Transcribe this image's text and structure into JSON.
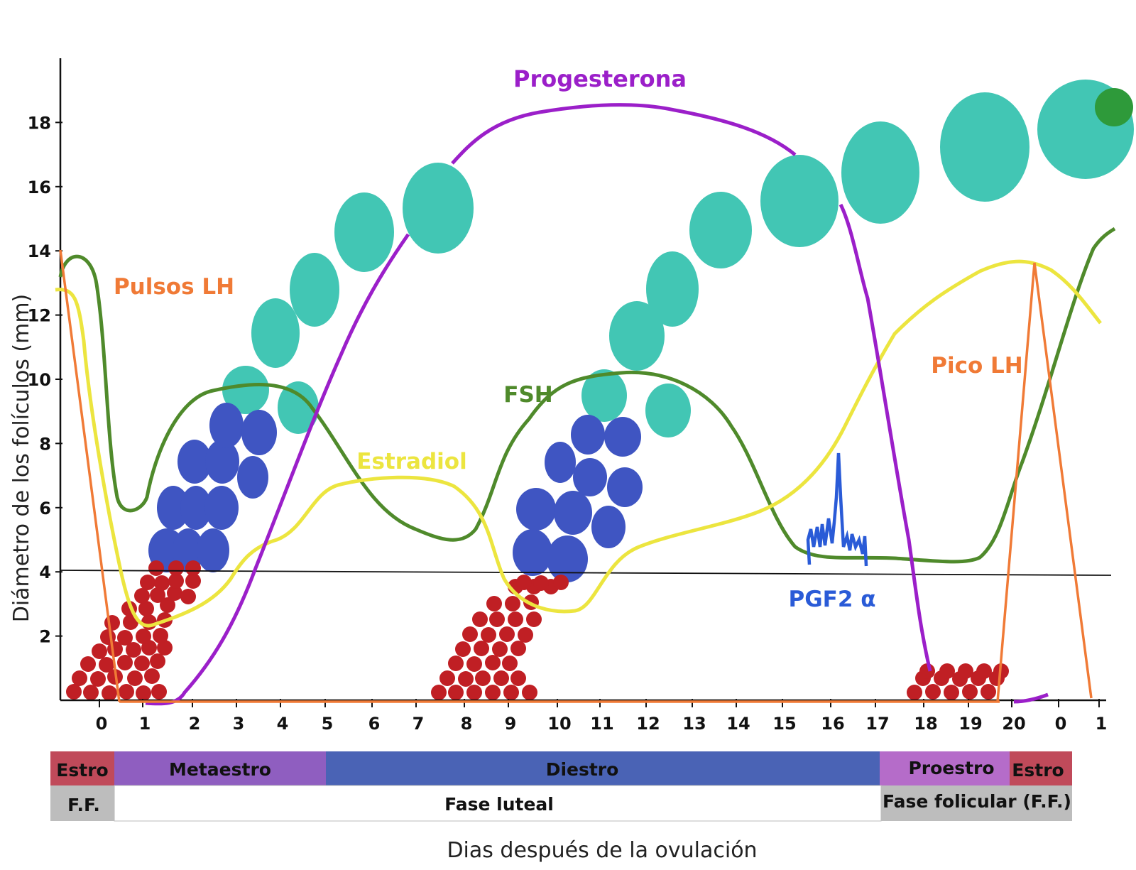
{
  "chart_data": {
    "type": "line",
    "ylabel": "Diámetro de los folículos (mm)",
    "xlabel": "Dias después de la ovulación",
    "y_ticks": [
      "2",
      "4",
      "6",
      "8",
      "10",
      "12",
      "14",
      "16",
      "18"
    ],
    "x_ticks": [
      "0",
      "1",
      "2",
      "3",
      "4",
      "5",
      "6",
      "7",
      "8",
      "9",
      "10",
      "11",
      "12",
      "13",
      "14",
      "15",
      "16",
      "17",
      "18",
      "19",
      "20",
      "0",
      "1"
    ],
    "ylim": [
      0,
      20
    ],
    "threshold_mm": 4,
    "series": [
      {
        "name": "Progesterona",
        "color": "#9b1fc9"
      },
      {
        "name": "FSH",
        "color": "#4f8a2b"
      },
      {
        "name": "Estradiol",
        "color": "#ece53f"
      },
      {
        "name": "Pulsos LH",
        "color": "#f07a36"
      },
      {
        "name": "Pico LH",
        "color": "#f07a36"
      },
      {
        "name": "PGF2 α",
        "color": "#2a5bd7"
      }
    ]
  },
  "phases": [
    {
      "label": "Estro",
      "color": "#c04a5a"
    },
    {
      "label": "Metaestro",
      "color": "#8f5ec0"
    },
    {
      "label": "Diestro",
      "color": "#4a63b5"
    },
    {
      "label": "Proestro",
      "color": "#b56cc9"
    },
    {
      "label": "Estro",
      "color": "#c04a5a"
    }
  ],
  "stages": [
    {
      "label": "F.F.",
      "color": "#bdbdbd"
    },
    {
      "label": "Fase luteal",
      "color": "#ffffff"
    },
    {
      "label": "Fase folicular (F.F.)",
      "color": "#bdbdbd"
    }
  ],
  "colors": {
    "small_follicle": "#c01f24",
    "medium_follicle": "#3f55c2",
    "large_follicle": "#42c6b4",
    "ovulatory_dot": "#2e9a3a"
  }
}
